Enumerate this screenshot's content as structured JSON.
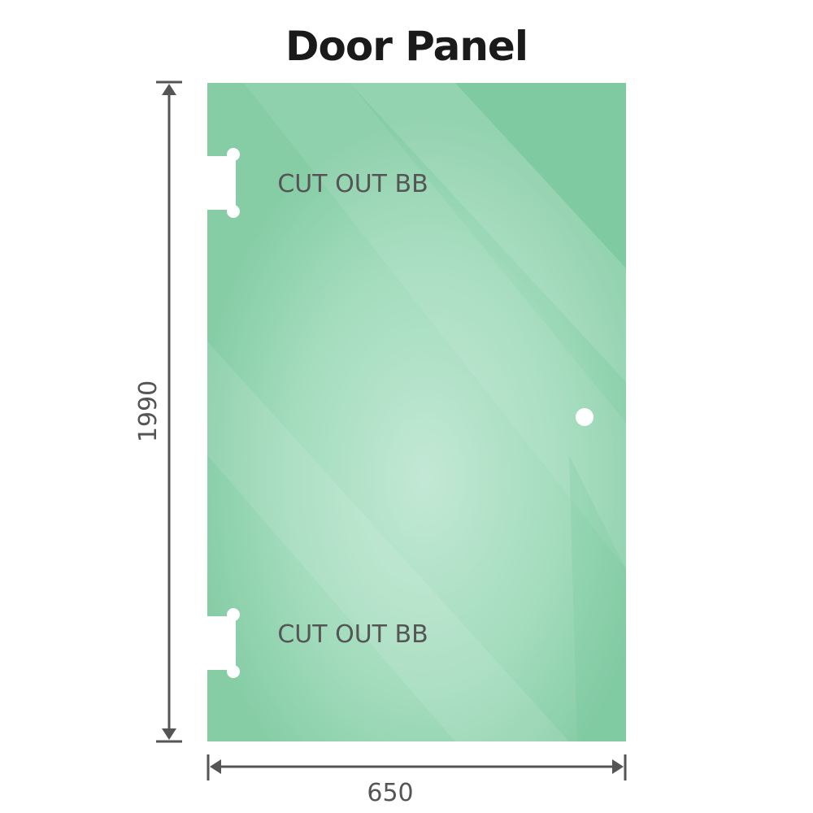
{
  "title": "Door Panel",
  "cutouts": [
    {
      "label": "CUT OUT BB"
    },
    {
      "label": "CUT OUT BB"
    }
  ],
  "dimensions": {
    "height": "1990",
    "width": "650"
  },
  "colors": {
    "glass": "#8ccfaa",
    "glass_light": "#bfe6d1",
    "dimension_line": "#555555"
  }
}
